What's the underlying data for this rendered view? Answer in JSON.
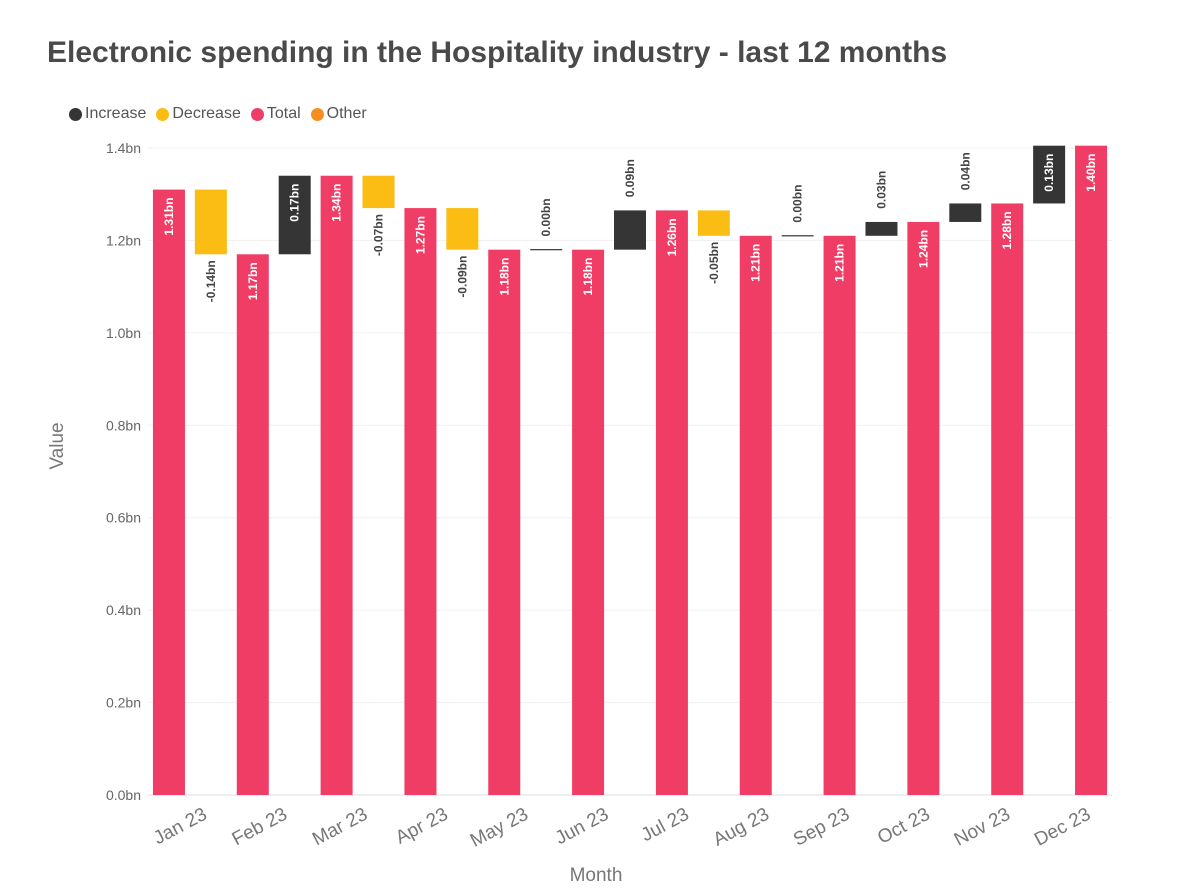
{
  "chart_data": {
    "type": "waterfall",
    "title": "Electronic spending in the Hospitality industry - last 12 months",
    "xlabel": "Month",
    "ylabel": "Value",
    "ylim": [
      0,
      1.4
    ],
    "y_ticks": [
      0,
      0.2,
      0.4,
      0.6,
      0.8,
      1.0,
      1.2,
      1.4
    ],
    "y_tick_labels": [
      "0.0bn",
      "0.2bn",
      "0.4bn",
      "0.6bn",
      "0.8bn",
      "1.0bn",
      "1.2bn",
      "1.4bn"
    ],
    "categories": [
      "Jan 23",
      "Feb 23",
      "Mar 23",
      "Apr 23",
      "May 23",
      "Jun 23",
      "Jul 23",
      "Aug 23",
      "Sep 23",
      "Oct 23",
      "Nov 23",
      "Dec 23"
    ],
    "legend": [
      {
        "name": "Increase",
        "color": "#353535"
      },
      {
        "name": "Decrease",
        "color": "#fbbd13"
      },
      {
        "name": "Total",
        "color": "#ef3d65"
      },
      {
        "name": "Other",
        "color": "#f78f1e"
      }
    ],
    "bars": [
      {
        "kind": "total",
        "start": 0,
        "end": 1.31,
        "label": "1.31bn"
      },
      {
        "kind": "decrease",
        "start": 1.31,
        "end": 1.17,
        "label": "-0.14bn"
      },
      {
        "kind": "total",
        "start": 0,
        "end": 1.17,
        "label": "1.17bn"
      },
      {
        "kind": "increase",
        "start": 1.17,
        "end": 1.34,
        "label": "0.17bn"
      },
      {
        "kind": "total",
        "start": 0,
        "end": 1.34,
        "label": "1.34bn"
      },
      {
        "kind": "decrease",
        "start": 1.34,
        "end": 1.27,
        "label": "-0.07bn"
      },
      {
        "kind": "total",
        "start": 0,
        "end": 1.27,
        "label": "1.27bn"
      },
      {
        "kind": "decrease",
        "start": 1.27,
        "end": 1.18,
        "label": "-0.09bn"
      },
      {
        "kind": "total",
        "start": 0,
        "end": 1.18,
        "label": "1.18bn"
      },
      {
        "kind": "increase",
        "start": 1.178,
        "end": 1.18,
        "label": "0.00bn"
      },
      {
        "kind": "total",
        "start": 0,
        "end": 1.18,
        "label": "1.18bn"
      },
      {
        "kind": "increase",
        "start": 1.18,
        "end": 1.265,
        "label": "0.09bn"
      },
      {
        "kind": "total",
        "start": 0,
        "end": 1.265,
        "label": "1.26bn"
      },
      {
        "kind": "decrease",
        "start": 1.265,
        "end": 1.21,
        "label": "-0.05bn"
      },
      {
        "kind": "total",
        "start": 0,
        "end": 1.21,
        "label": "1.21bn"
      },
      {
        "kind": "increase",
        "start": 1.21,
        "end": 1.21,
        "label": "0.00bn"
      },
      {
        "kind": "total",
        "start": 0,
        "end": 1.21,
        "label": "1.21bn"
      },
      {
        "kind": "increase",
        "start": 1.21,
        "end": 1.24,
        "label": "0.03bn"
      },
      {
        "kind": "total",
        "start": 0,
        "end": 1.24,
        "label": "1.24bn"
      },
      {
        "kind": "increase",
        "start": 1.24,
        "end": 1.28,
        "label": "0.04bn"
      },
      {
        "kind": "total",
        "start": 0,
        "end": 1.28,
        "label": "1.28bn"
      },
      {
        "kind": "increase",
        "start": 1.28,
        "end": 1.405,
        "label": "0.13bn"
      },
      {
        "kind": "total",
        "start": 0,
        "end": 1.405,
        "label": "1.40bn"
      }
    ]
  }
}
